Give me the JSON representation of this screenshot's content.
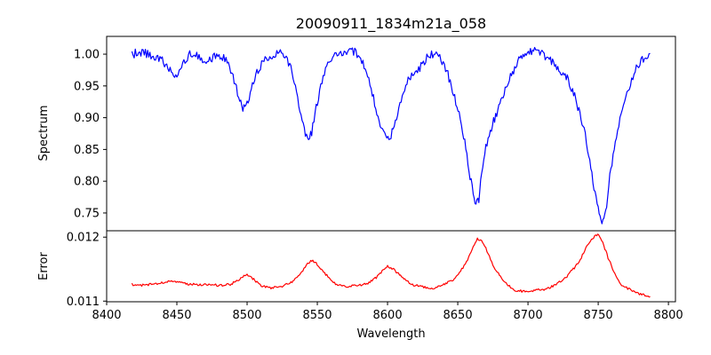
{
  "chart_data": [
    {
      "type": "line",
      "title": "20090911_1834m21a_058",
      "xlabel": "",
      "ylabel": "Spectrum",
      "xlim": [
        8400,
        8805
      ],
      "ylim": [
        0.722,
        1.028
      ],
      "yticks": [
        0.75,
        0.8,
        0.85,
        0.9,
        0.95,
        1.0
      ],
      "ytick_labels": [
        "0.75",
        "0.80",
        "0.85",
        "0.90",
        "0.95",
        "1.00"
      ],
      "grid": false,
      "series": [
        {
          "color": "#0000ff",
          "x": [
            8418,
            8422,
            8426,
            8430,
            8434,
            8438,
            8442,
            8446,
            8450,
            8455,
            8460,
            8465,
            8470,
            8475,
            8480,
            8485,
            8490,
            8494,
            8497,
            8500,
            8503,
            8507,
            8512,
            8517,
            8522,
            8527,
            8532,
            8536,
            8540,
            8543,
            8546,
            8550,
            8555,
            8560,
            8565,
            8570,
            8575,
            8580,
            8585,
            8590,
            8594,
            8598,
            8601,
            8604,
            8608,
            8613,
            8618,
            8623,
            8628,
            8633,
            8638,
            8643,
            8647,
            8651,
            8655,
            8658,
            8661,
            8663,
            8665,
            8667,
            8670,
            8674,
            8680,
            8686,
            8692,
            8698,
            8704,
            8710,
            8716,
            8722,
            8728,
            8734,
            8740,
            8744,
            8747,
            8750,
            8752,
            8754,
            8756,
            8759,
            8763,
            8768,
            8773,
            8778,
            8783,
            8787
          ],
          "y": [
            0.998,
            1.004,
            1.003,
            0.999,
            0.996,
            0.992,
            0.985,
            0.971,
            0.962,
            0.99,
            1.001,
            0.998,
            0.988,
            0.994,
            0.999,
            0.99,
            0.965,
            0.935,
            0.916,
            0.92,
            0.945,
            0.972,
            0.991,
            0.998,
            1.003,
            0.999,
            0.975,
            0.93,
            0.89,
            0.864,
            0.878,
            0.925,
            0.972,
            0.995,
            1.003,
            1.005,
            1.006,
            0.998,
            0.975,
            0.93,
            0.895,
            0.875,
            0.867,
            0.88,
            0.915,
            0.955,
            0.97,
            0.978,
            0.994,
            1.001,
            0.993,
            0.968,
            0.94,
            0.905,
            0.86,
            0.815,
            0.782,
            0.765,
            0.772,
            0.81,
            0.855,
            0.885,
            0.92,
            0.958,
            0.985,
            1.003,
            1.006,
            1.0,
            0.99,
            0.978,
            0.961,
            0.93,
            0.88,
            0.832,
            0.79,
            0.755,
            0.738,
            0.742,
            0.765,
            0.82,
            0.87,
            0.92,
            0.955,
            0.982,
            0.995,
            1.001
          ]
        }
      ]
    },
    {
      "type": "line",
      "title": "",
      "xlabel": "Wavelength",
      "ylabel": "Error",
      "xlim": [
        8400,
        8805
      ],
      "ylim": [
        0.01099,
        0.0121
      ],
      "xticks": [
        8400,
        8450,
        8500,
        8550,
        8600,
        8650,
        8700,
        8750,
        8800
      ],
      "xtick_labels": [
        "8400",
        "8450",
        "8500",
        "8550",
        "8600",
        "8650",
        "8700",
        "8750",
        "8800"
      ],
      "yticks": [
        0.011,
        0.012
      ],
      "ytick_labels": [
        "0.011",
        "0.012"
      ],
      "grid": false,
      "series": [
        {
          "color": "#ff0000",
          "x": [
            8418,
            8425,
            8432,
            8440,
            8447,
            8452,
            8458,
            8465,
            8472,
            8480,
            8488,
            8494,
            8497,
            8500,
            8504,
            8510,
            8517,
            8525,
            8532,
            8538,
            8543,
            8546,
            8550,
            8556,
            8563,
            8570,
            8578,
            8586,
            8592,
            8597,
            8600,
            8604,
            8610,
            8617,
            8625,
            8633,
            8640,
            8646,
            8652,
            8657,
            8661,
            8664,
            8667,
            8670,
            8675,
            8682,
            8690,
            8698,
            8705,
            8713,
            8720,
            8727,
            8733,
            8738,
            8742,
            8746,
            8749,
            8751,
            8754,
            8757,
            8761,
            8766,
            8771,
            8776,
            8781,
            8787
          ],
          "y": [
            0.011262,
            0.011248,
            0.011262,
            0.01129,
            0.01132,
            0.0113,
            0.011262,
            0.011258,
            0.011262,
            0.011245,
            0.011262,
            0.01133,
            0.01139,
            0.011405,
            0.011355,
            0.01124,
            0.011205,
            0.011225,
            0.0113,
            0.01143,
            0.01158,
            0.01164,
            0.011575,
            0.01142,
            0.011262,
            0.01123,
            0.01124,
            0.01127,
            0.01137,
            0.01149,
            0.011545,
            0.011505,
            0.01138,
            0.011262,
            0.01122,
            0.011195,
            0.011262,
            0.01132,
            0.01147,
            0.01164,
            0.01186,
            0.01197,
            0.01194,
            0.01183,
            0.01156,
            0.01133,
            0.01117,
            0.01115,
            0.01117,
            0.01119,
            0.011262,
            0.01137,
            0.01152,
            0.01168,
            0.01187,
            0.01198,
            0.01204,
            0.01201,
            0.01187,
            0.01168,
            0.01147,
            0.011262,
            0.0112,
            0.01114,
            0.0111,
            0.01107
          ]
        }
      ]
    }
  ]
}
